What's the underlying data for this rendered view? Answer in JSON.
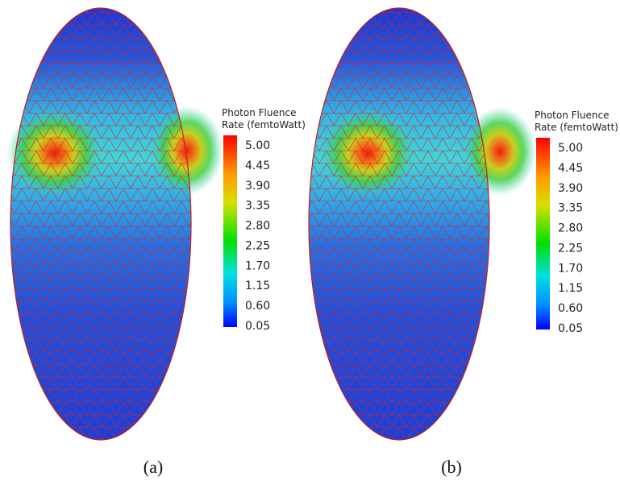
{
  "panels": [
    {
      "caption": "(a)",
      "legend": {
        "title": [
          "Photon Fluence",
          "Rate (femtoWatt)"
        ],
        "labels": [
          "5.00",
          "4.45",
          "3.90",
          "3.35",
          "2.80",
          "2.25",
          "1.70",
          "1.15",
          "0.60",
          "0.05"
        ]
      }
    },
    {
      "caption": "(b)",
      "legend": {
        "title": [
          "Photon Fluence",
          "Rate (femtoWatt)"
        ],
        "labels": [
          "5.00",
          "4.45",
          "3.90",
          "3.35",
          "2.80",
          "2.25",
          "1.70",
          "1.15",
          "0.60",
          "0.05"
        ]
      }
    }
  ]
}
